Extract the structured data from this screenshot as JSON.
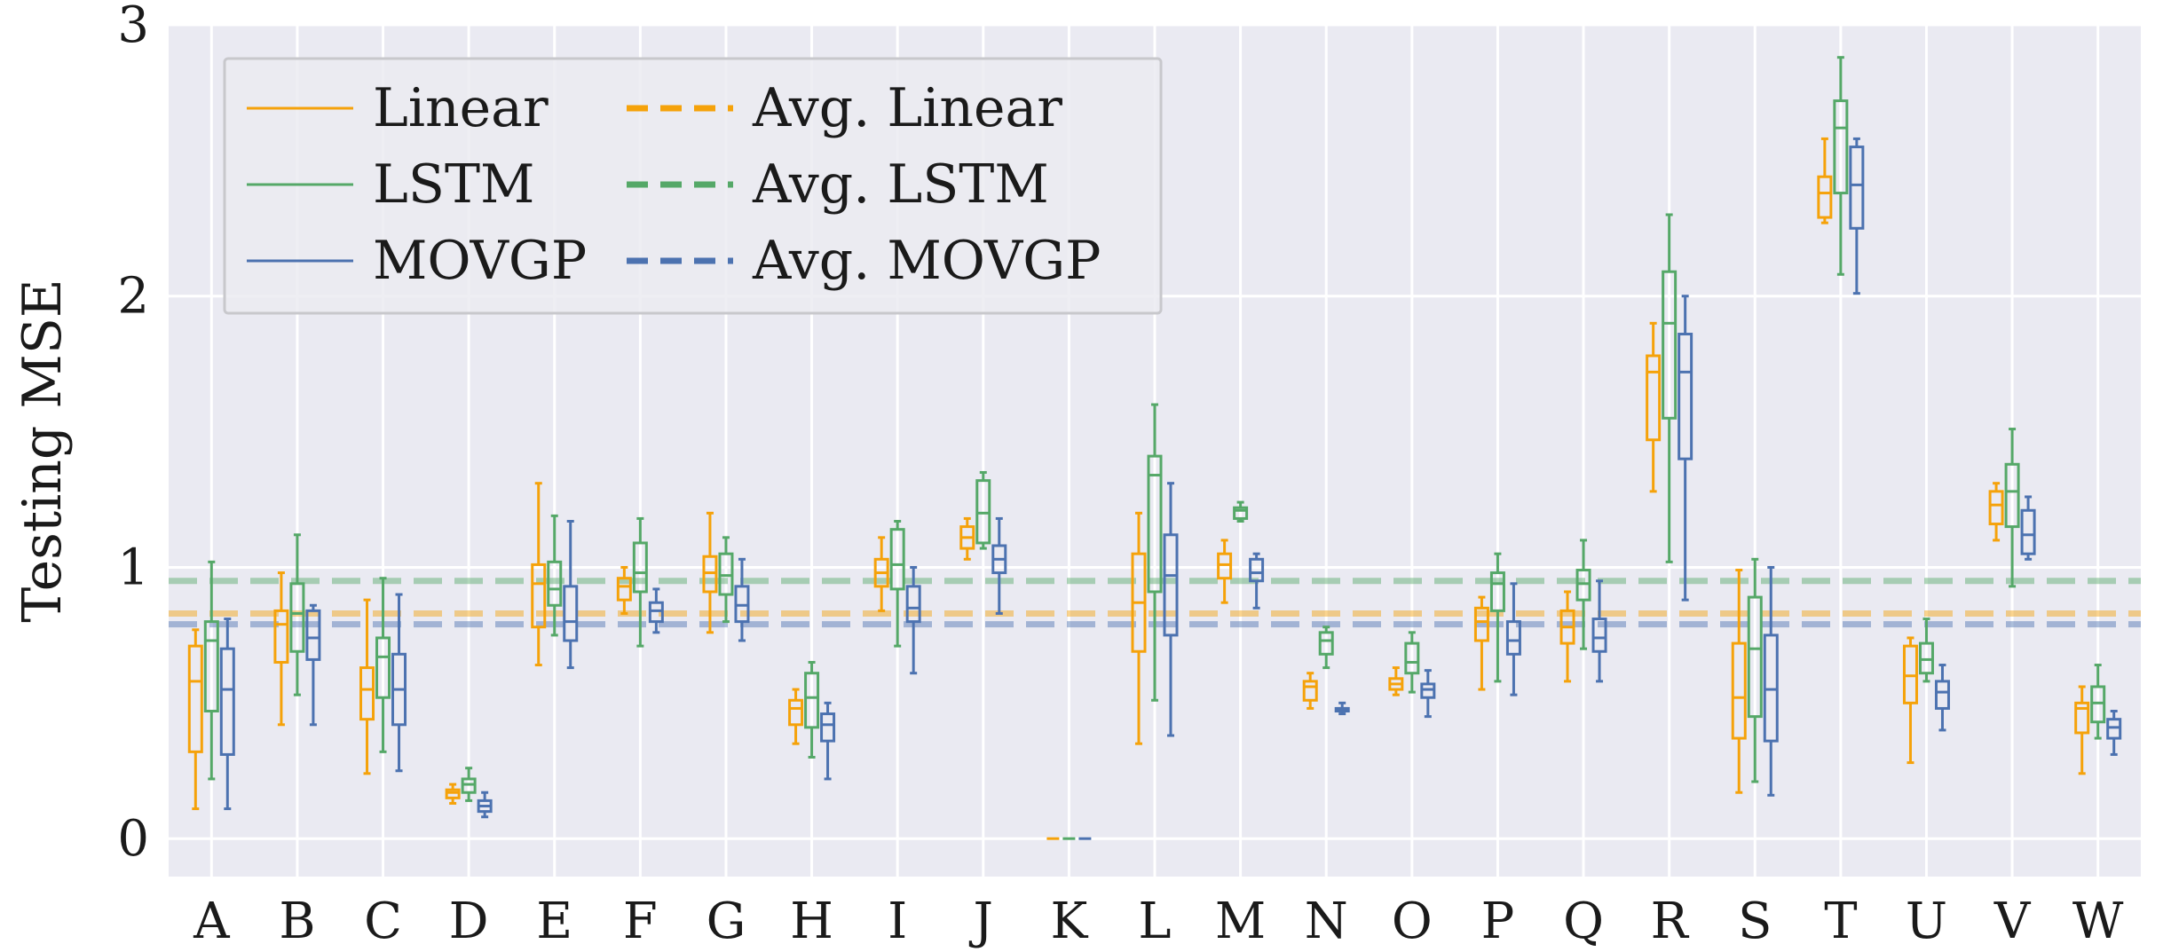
{
  "chart_data": {
    "type": "boxplot",
    "title": "",
    "xlabel": "",
    "ylabel": "Testing MSE",
    "ylim": [
      -0.14,
      3.0
    ],
    "yticks": [
      0,
      1,
      2,
      3
    ],
    "grid": true,
    "legend_position": "top-left",
    "categories": [
      "A",
      "B",
      "C",
      "D",
      "E",
      "F",
      "G",
      "H",
      "I",
      "J",
      "K",
      "L",
      "M",
      "N",
      "O",
      "P",
      "Q",
      "R",
      "S",
      "T",
      "U",
      "V",
      "W"
    ],
    "colors": {
      "Linear": "#f5a20a",
      "LSTM": "#55a868",
      "MOVGP": "#4c72b0",
      "background": "#eaeaf2",
      "grid": "#ffffff"
    },
    "series": [
      {
        "name": "Linear",
        "boxes": [
          [
            0.11,
            0.32,
            0.58,
            0.71,
            0.77
          ],
          [
            0.42,
            0.65,
            0.79,
            0.84,
            0.98
          ],
          [
            0.24,
            0.44,
            0.55,
            0.63,
            0.88
          ],
          [
            0.13,
            0.15,
            0.17,
            0.18,
            0.2
          ],
          [
            0.64,
            0.78,
            0.94,
            1.01,
            1.31
          ],
          [
            0.83,
            0.88,
            0.93,
            0.96,
            1.0
          ],
          [
            0.76,
            0.91,
            0.98,
            1.04,
            1.2
          ],
          [
            0.35,
            0.42,
            0.48,
            0.51,
            0.55
          ],
          [
            0.84,
            0.93,
            0.98,
            1.03,
            1.11
          ],
          [
            1.03,
            1.07,
            1.11,
            1.15,
            1.18
          ],
          [
            0,
            0,
            0,
            0,
            0
          ],
          [
            0.35,
            0.69,
            0.87,
            1.05,
            1.2
          ],
          [
            0.87,
            0.96,
            1.01,
            1.05,
            1.1
          ],
          [
            0.48,
            0.51,
            0.56,
            0.58,
            0.61
          ],
          [
            0.53,
            0.55,
            0.57,
            0.59,
            0.63
          ],
          [
            0.55,
            0.73,
            0.8,
            0.85,
            0.89
          ],
          [
            0.58,
            0.72,
            0.78,
            0.84,
            0.91
          ],
          [
            1.28,
            1.47,
            1.72,
            1.78,
            1.9
          ],
          [
            0.17,
            0.37,
            0.52,
            0.72,
            0.99
          ],
          [
            2.27,
            2.29,
            2.38,
            2.44,
            2.58
          ],
          [
            0.28,
            0.5,
            0.6,
            0.71,
            0.74
          ],
          [
            1.1,
            1.16,
            1.23,
            1.28,
            1.31
          ],
          [
            0.24,
            0.39,
            0.48,
            0.5,
            0.56
          ]
        ],
        "average": 0.83
      },
      {
        "name": "LSTM",
        "boxes": [
          [
            0.22,
            0.47,
            0.73,
            0.8,
            1.02
          ],
          [
            0.53,
            0.69,
            0.83,
            0.94,
            1.12
          ],
          [
            0.32,
            0.52,
            0.67,
            0.74,
            0.96
          ],
          [
            0.14,
            0.17,
            0.2,
            0.22,
            0.26
          ],
          [
            0.75,
            0.86,
            0.92,
            1.02,
            1.19
          ],
          [
            0.71,
            0.91,
            0.98,
            1.09,
            1.18
          ],
          [
            0.8,
            0.9,
            0.97,
            1.05,
            1.11
          ],
          [
            0.3,
            0.41,
            0.52,
            0.61,
            0.65
          ],
          [
            0.71,
            0.92,
            1.01,
            1.14,
            1.17
          ],
          [
            1.07,
            1.09,
            1.2,
            1.32,
            1.35
          ],
          [
            0,
            0,
            0,
            0,
            0
          ],
          [
            0.51,
            0.91,
            1.34,
            1.41,
            1.6
          ],
          [
            1.17,
            1.18,
            1.21,
            1.22,
            1.24
          ],
          [
            0.63,
            0.68,
            0.73,
            0.76,
            0.78
          ],
          [
            0.54,
            0.61,
            0.65,
            0.72,
            0.76
          ],
          [
            0.58,
            0.84,
            0.94,
            0.98,
            1.05
          ],
          [
            0.7,
            0.88,
            0.94,
            0.99,
            1.1
          ],
          [
            1.02,
            1.55,
            1.9,
            2.09,
            2.3
          ],
          [
            0.21,
            0.45,
            0.7,
            0.89,
            1.03
          ],
          [
            2.08,
            2.38,
            2.62,
            2.72,
            2.88
          ],
          [
            0.58,
            0.61,
            0.66,
            0.72,
            0.81
          ],
          [
            0.93,
            1.15,
            1.28,
            1.38,
            1.51
          ],
          [
            0.37,
            0.43,
            0.5,
            0.56,
            0.64
          ]
        ],
        "average": 0.95
      },
      {
        "name": "MOVGP",
        "boxes": [
          [
            0.11,
            0.31,
            0.55,
            0.7,
            0.81
          ],
          [
            0.42,
            0.66,
            0.74,
            0.84,
            0.86
          ],
          [
            0.25,
            0.42,
            0.55,
            0.68,
            0.9
          ],
          [
            0.08,
            0.1,
            0.12,
            0.14,
            0.17
          ],
          [
            0.63,
            0.73,
            0.8,
            0.93,
            1.17
          ],
          [
            0.76,
            0.8,
            0.84,
            0.87,
            0.92
          ],
          [
            0.73,
            0.8,
            0.86,
            0.93,
            1.03
          ],
          [
            0.22,
            0.36,
            0.42,
            0.46,
            0.5
          ],
          [
            0.61,
            0.8,
            0.85,
            0.93,
            1.0
          ],
          [
            0.83,
            0.98,
            1.03,
            1.08,
            1.18
          ],
          [
            0,
            0,
            0,
            0,
            0
          ],
          [
            0.38,
            0.75,
            0.97,
            1.12,
            1.31
          ],
          [
            0.85,
            0.95,
            0.98,
            1.03,
            1.05
          ],
          [
            0.46,
            0.47,
            0.48,
            0.48,
            0.5
          ],
          [
            0.45,
            0.52,
            0.55,
            0.57,
            0.62
          ],
          [
            0.53,
            0.68,
            0.73,
            0.8,
            0.94
          ],
          [
            0.58,
            0.69,
            0.74,
            0.81,
            0.95
          ],
          [
            0.88,
            1.4,
            1.72,
            1.86,
            2.0
          ],
          [
            0.16,
            0.36,
            0.55,
            0.75,
            1.0
          ],
          [
            2.01,
            2.25,
            2.41,
            2.55,
            2.58
          ],
          [
            0.4,
            0.48,
            0.54,
            0.58,
            0.64
          ],
          [
            1.03,
            1.05,
            1.12,
            1.21,
            1.26
          ],
          [
            0.31,
            0.37,
            0.41,
            0.44,
            0.47
          ]
        ],
        "average": 0.79
      }
    ],
    "legend": [
      {
        "label": "Linear",
        "series": "Linear",
        "style": "solid"
      },
      {
        "label": "Avg. Linear",
        "series": "Linear",
        "style": "dashed"
      },
      {
        "label": "LSTM",
        "series": "LSTM",
        "style": "solid"
      },
      {
        "label": "Avg. LSTM",
        "series": "LSTM",
        "style": "dashed"
      },
      {
        "label": "MOVGP",
        "series": "MOVGP",
        "style": "solid"
      },
      {
        "label": "Avg. MOVGP",
        "series": "MOVGP",
        "style": "dashed"
      }
    ]
  }
}
